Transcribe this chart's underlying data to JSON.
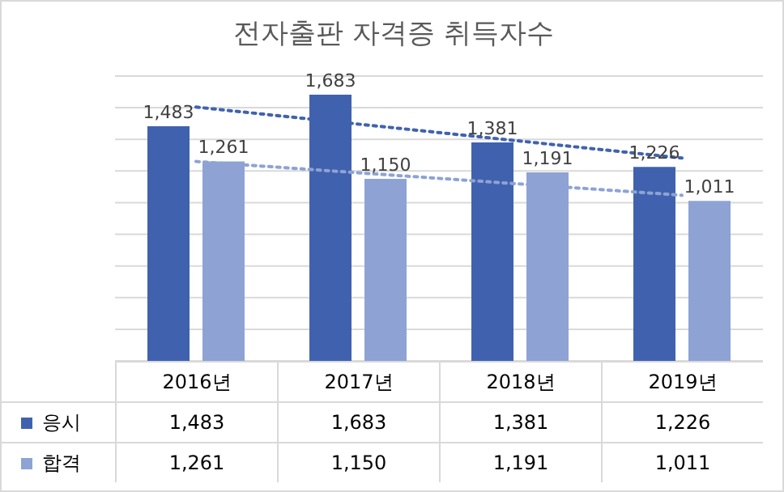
{
  "chart_data": {
    "type": "bar",
    "title": "전자출판 자격증 취득자수",
    "categories": [
      "2016년",
      "2017년",
      "2018년",
      "2019년"
    ],
    "series": [
      {
        "name": "응시",
        "color": "#4062ae",
        "values": [
          1483,
          1683,
          1381,
          1226
        ],
        "value_labels": [
          "1,483",
          "1,683",
          "1,381",
          "1,226"
        ]
      },
      {
        "name": "합격",
        "color": "#8ea3d4",
        "values": [
          1261,
          1150,
          1191,
          1011
        ],
        "value_labels": [
          "1,261",
          "1,150",
          "1,191",
          "1,011"
        ]
      },
      {
        "type": "line",
        "x": [
          "2016년",
          "2019년"
        ],
        "values": [
          1604,
          1282
        ],
        "color": "#4062ae",
        "line_style": "dotted"
      },
      {
        "type": "line",
        "x": [
          "2016년",
          "2019년"
        ],
        "values": [
          1260,
          1047
        ],
        "color": "#8ea3d4",
        "line_style": "dotted"
      }
    ],
    "grid": "y",
    "tick_labels": "x",
    "legend": "bottom left"
  }
}
